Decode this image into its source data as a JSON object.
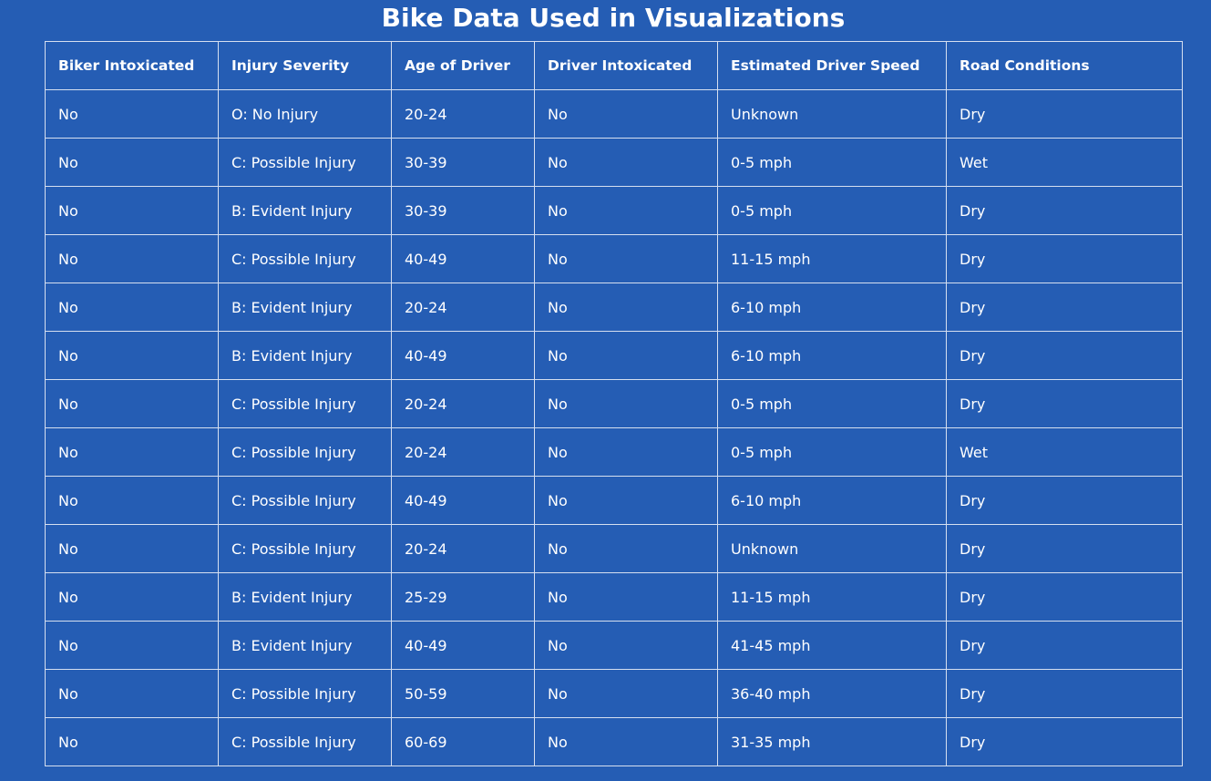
{
  "page": {
    "title": "Bike Data Used in Visualizations"
  },
  "colors": {
    "background": "#255db4",
    "text": "#ffffff",
    "border": "#d6dff0"
  },
  "table": {
    "headers": [
      "Biker Intoxicated",
      "Injury Severity",
      "Age of Driver",
      "Driver Intoxicated",
      "Estimated Driver Speed",
      "Road Conditions"
    ],
    "rows": [
      [
        "No",
        "O: No Injury",
        "20-24",
        "No",
        "Unknown",
        "Dry"
      ],
      [
        "No",
        "C: Possible Injury",
        "30-39",
        "No",
        "0-5 mph",
        "Wet"
      ],
      [
        "No",
        "B: Evident Injury",
        "30-39",
        "No",
        "0-5 mph",
        "Dry"
      ],
      [
        "No",
        "C: Possible Injury",
        "40-49",
        "No",
        "11-15 mph",
        "Dry"
      ],
      [
        "No",
        "B: Evident Injury",
        "20-24",
        "No",
        "6-10 mph",
        "Dry"
      ],
      [
        "No",
        "B: Evident Injury",
        "40-49",
        "No",
        "6-10 mph",
        "Dry"
      ],
      [
        "No",
        "C: Possible Injury",
        "20-24",
        "No",
        "0-5 mph",
        "Dry"
      ],
      [
        "No",
        "C: Possible Injury",
        "20-24",
        "No",
        "0-5 mph",
        "Wet"
      ],
      [
        "No",
        "C: Possible Injury",
        "40-49",
        "No",
        "6-10 mph",
        "Dry"
      ],
      [
        "No",
        "C: Possible Injury",
        "20-24",
        "No",
        "Unknown",
        "Dry"
      ],
      [
        "No",
        "B: Evident Injury",
        "25-29",
        "No",
        "11-15 mph",
        "Dry"
      ],
      [
        "No",
        "B: Evident Injury",
        "40-49",
        "No",
        "41-45 mph",
        "Dry"
      ],
      [
        "No",
        "C: Possible Injury",
        "50-59",
        "No",
        "36-40 mph",
        "Dry"
      ],
      [
        "No",
        "C: Possible Injury",
        "60-69",
        "No",
        "31-35 mph",
        "Dry"
      ]
    ]
  }
}
